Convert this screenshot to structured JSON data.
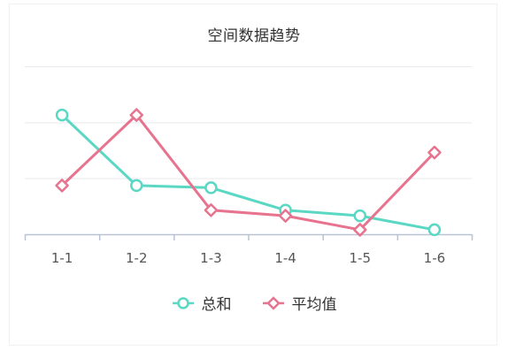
{
  "chart_data": {
    "type": "line",
    "title": "空间数据趋势",
    "xlabel": "",
    "ylabel": "",
    "categories": [
      "1-1",
      "1-2",
      "1-3",
      "1-4",
      "1-5",
      "1-6"
    ],
    "ylim": [
      0,
      5
    ],
    "grid": true,
    "legend_position": "bottom",
    "series": [
      {
        "name": "总和",
        "color": "#5ad8c4",
        "marker": "circle",
        "values": [
          2.13,
          0.87,
          0.83,
          0.43,
          0.33,
          0.08
        ]
      },
      {
        "name": "平均值",
        "color": "#e8738f",
        "marker": "diamond",
        "values": [
          0.87,
          2.13,
          0.43,
          0.33,
          0.08,
          1.46
        ]
      }
    ]
  }
}
